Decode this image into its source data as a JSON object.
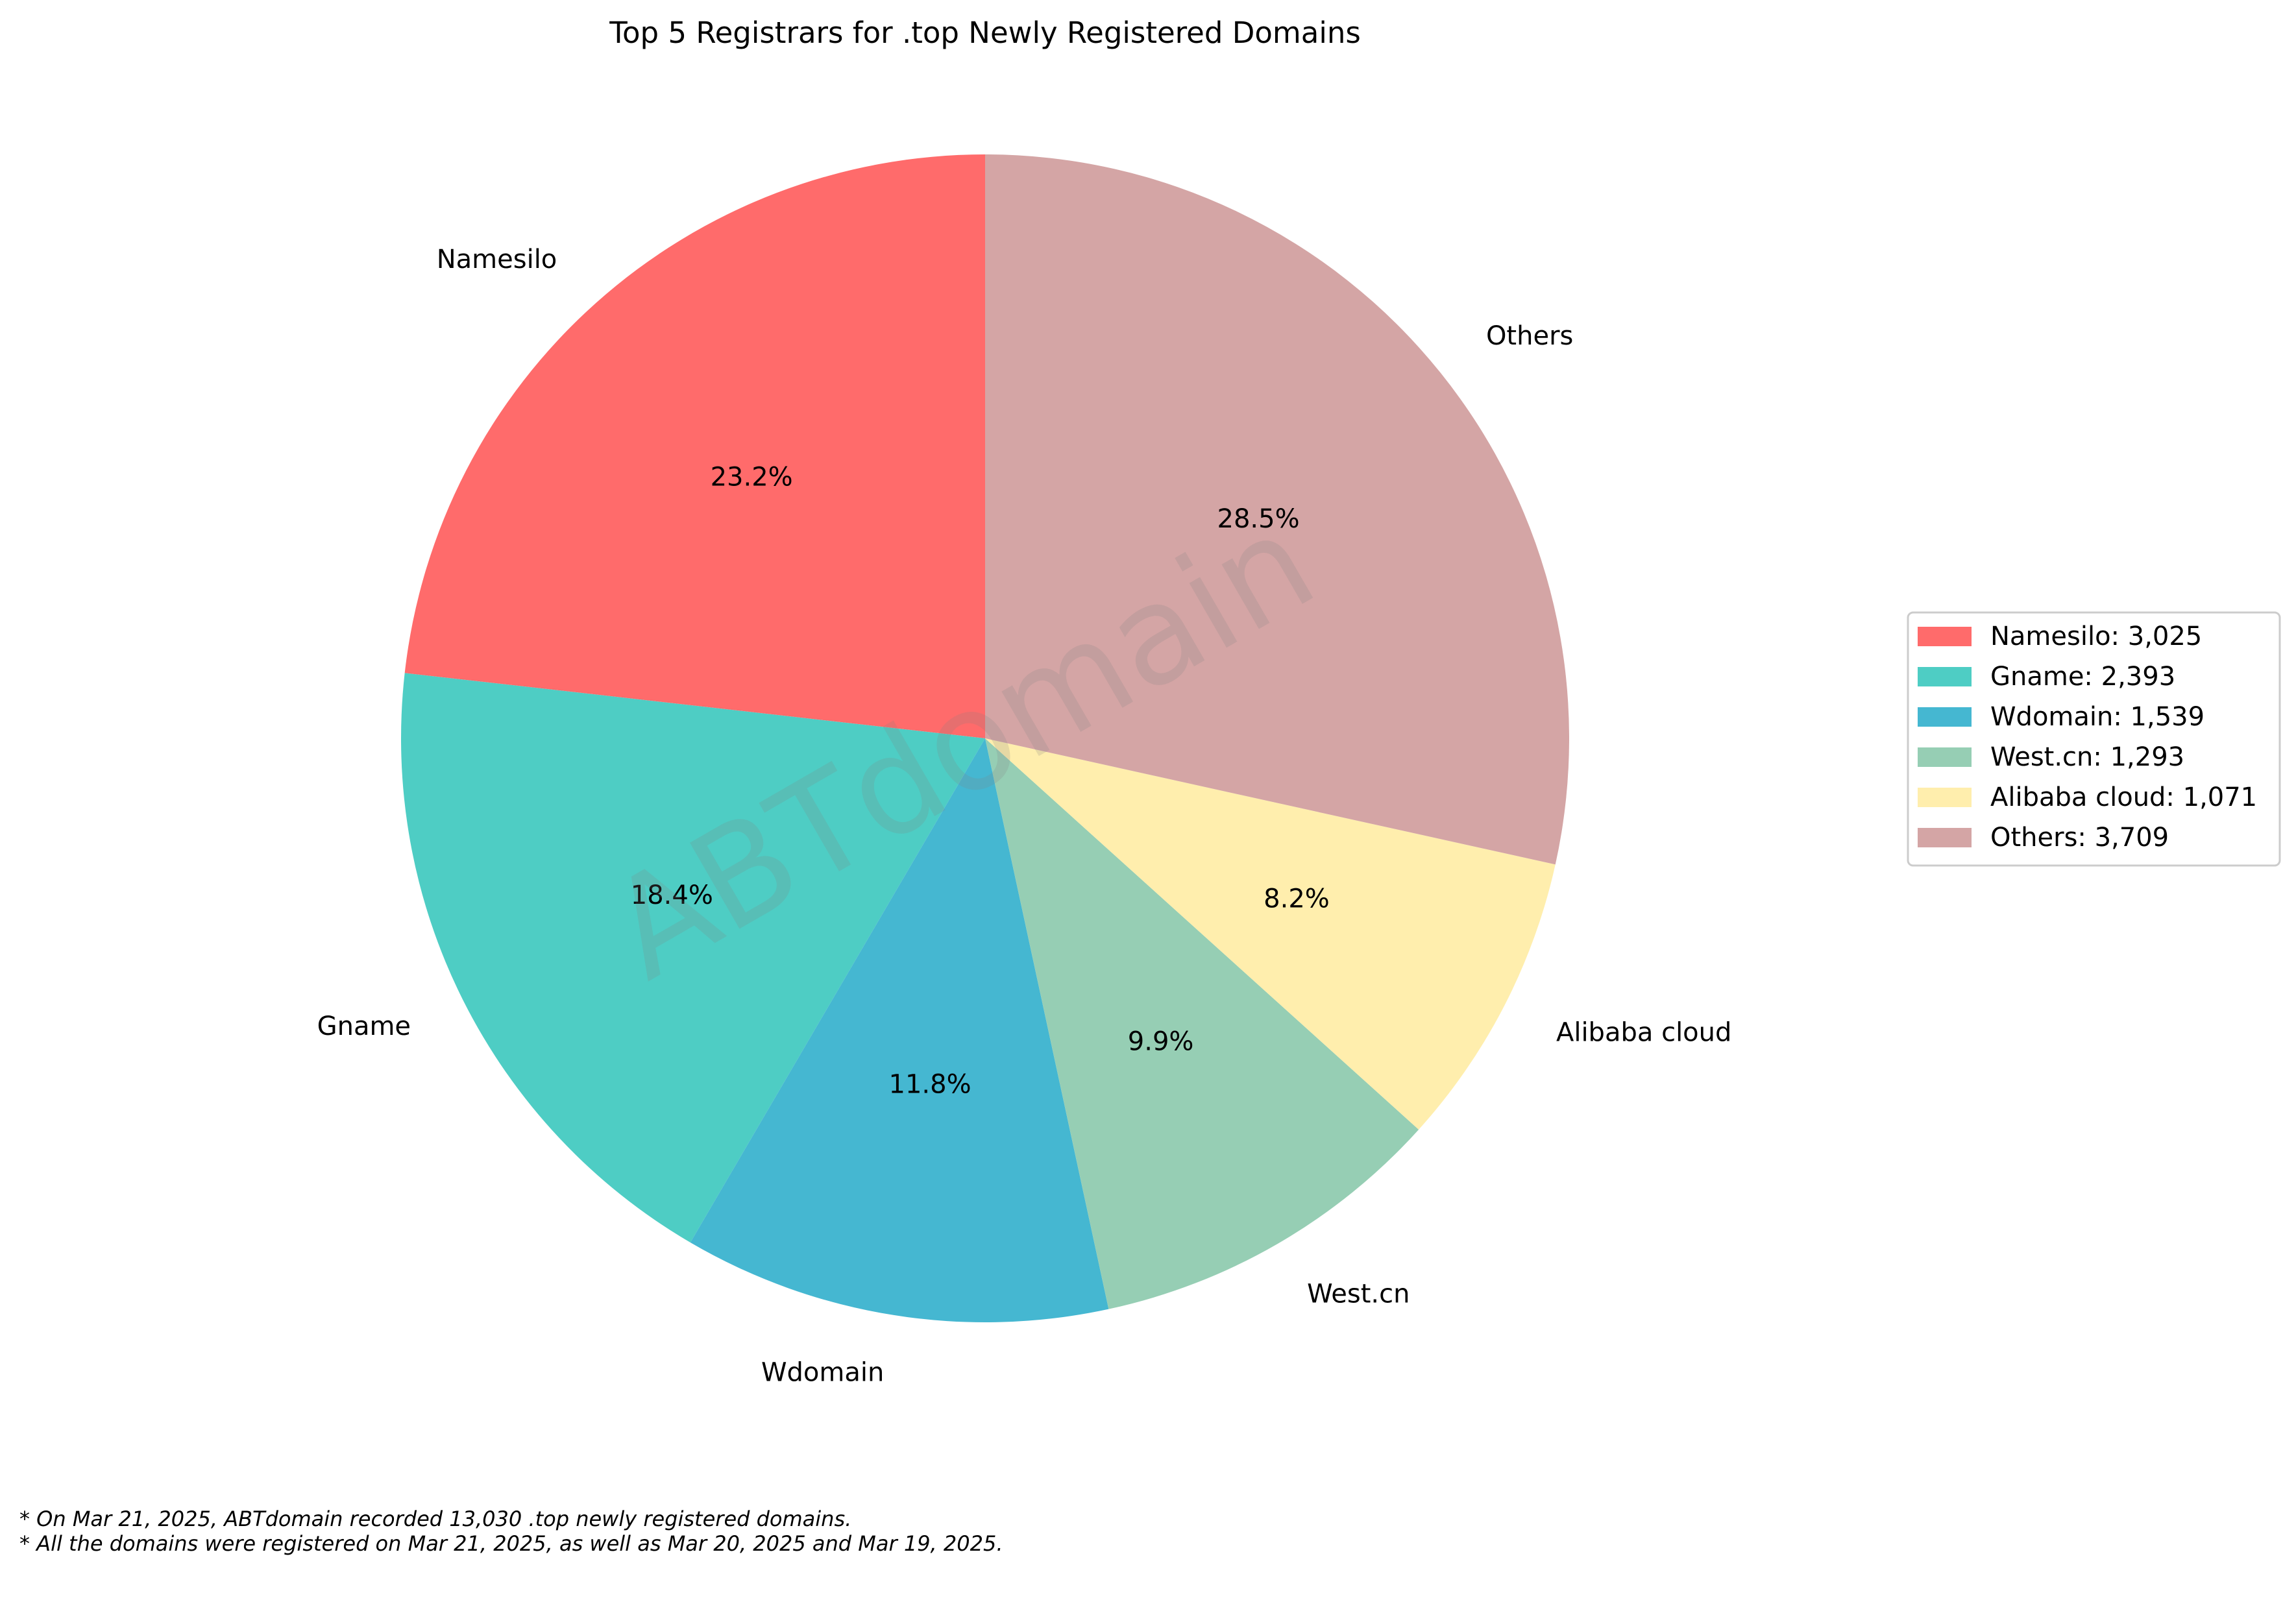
{
  "chart_data": {
    "type": "pie",
    "title": "Top 5 Registrars for .top Newly Registered Domains",
    "categories": [
      "Namesilo",
      "Gname",
      "Wdomain",
      "West.cn",
      "Alibaba cloud",
      "Others"
    ],
    "values": [
      3025,
      2393,
      1539,
      1293,
      1071,
      3709
    ],
    "percent_labels": [
      "23.2%",
      "18.4%",
      "11.8%",
      "9.9%",
      "8.2%",
      "28.5%"
    ],
    "legend_labels": [
      "Namesilo: 3,025",
      "Gname: 2,393",
      "Wdomain: 1,539",
      "West.cn: 1,293",
      "Alibaba cloud: 1,071",
      "Others: 3,709"
    ],
    "colors": [
      "#ff6b6b",
      "#4ecdc4",
      "#45b7d1",
      "#96ceb4",
      "#ffeead",
      "#d4a5a5"
    ],
    "start_angle_deg": 90,
    "direction": "counterclockwise",
    "legend_position": "center-right",
    "watermark": "ABTdomain",
    "footnotes": [
      "* On Mar 21, 2025, ABTdomain recorded 13,030 .top newly registered domains.",
      "* All the domains were registered on Mar 21, 2025, as well as Mar 20, 2025 and Mar 19, 2025."
    ]
  }
}
